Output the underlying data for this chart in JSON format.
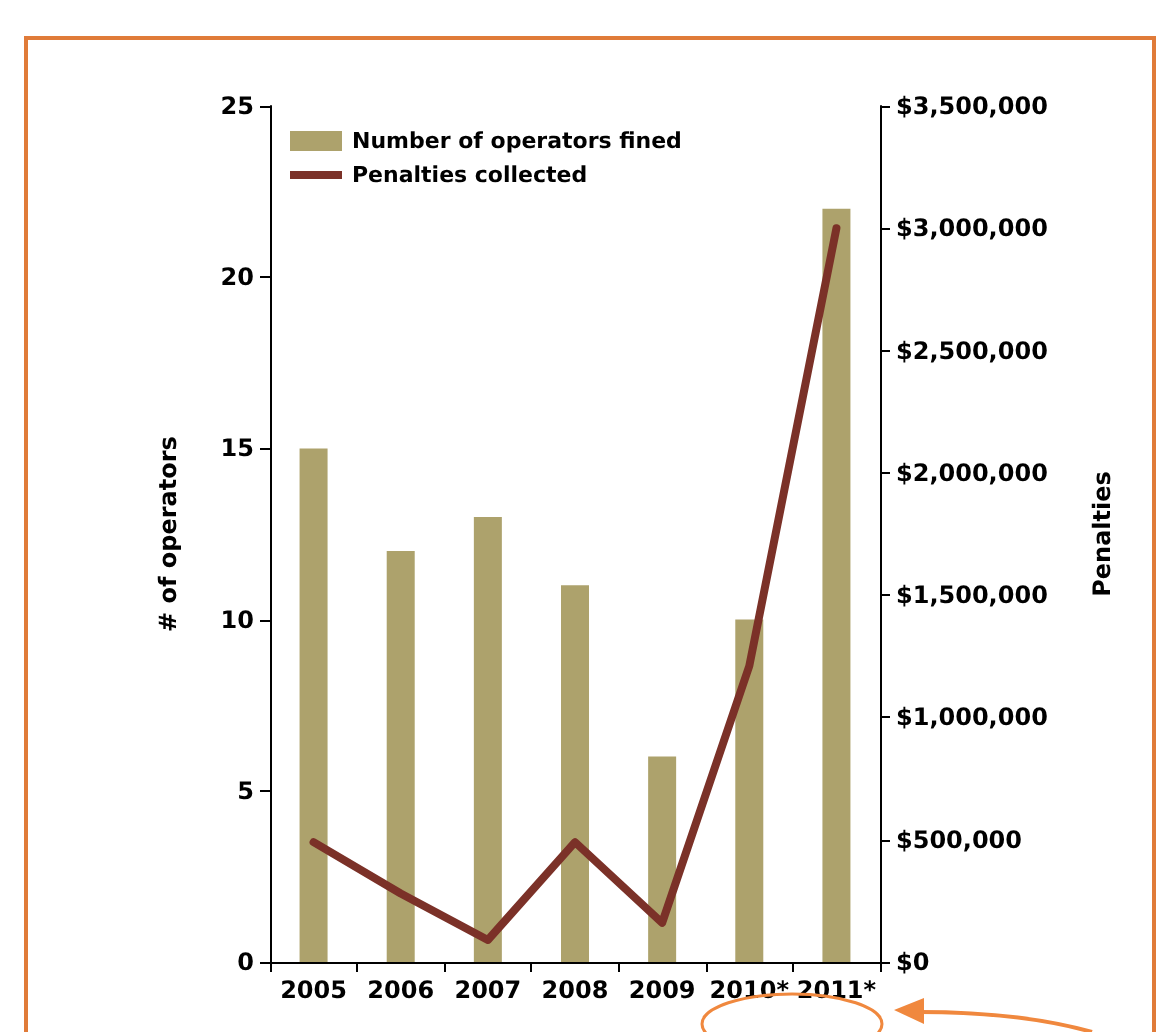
{
  "chart_data": {
    "type": "bar",
    "ylabel": "# of operators",
    "y2label": "Penalties",
    "categories": [
      "2005",
      "2006",
      "2007",
      "2008",
      "2009",
      "2010*",
      "2011*"
    ],
    "series": [
      {
        "name": "Number of operators fined",
        "color": "#ada26c",
        "values": [
          15,
          12,
          13,
          11,
          6,
          10,
          22
        ]
      },
      {
        "name": "Penalties collected",
        "type": "line",
        "axis": "y2",
        "color": "#7b3128",
        "values": [
          490000,
          280000,
          90000,
          490000,
          160000,
          1210000,
          3000000
        ]
      }
    ],
    "ylim": [
      0,
      25
    ],
    "yticks": [
      0,
      5,
      10,
      15,
      20,
      25
    ],
    "y2lim": [
      0,
      3500000
    ],
    "y2ticks": [
      {
        "value": 0,
        "label": "$0"
      },
      {
        "value": 500000,
        "label": "$500,000"
      },
      {
        "value": 1000000,
        "label": "$1,000,000"
      },
      {
        "value": 1500000,
        "label": "$1,500,000"
      },
      {
        "value": 2000000,
        "label": "$2,000,000"
      },
      {
        "value": 2500000,
        "label": "$2,500,000"
      },
      {
        "value": 3000000,
        "label": "$3,000,000"
      },
      {
        "value": 3500000,
        "label": "$3,500,000"
      }
    ],
    "legend": "top left",
    "grid": false,
    "marker": "none",
    "line_style": "solid"
  }
}
